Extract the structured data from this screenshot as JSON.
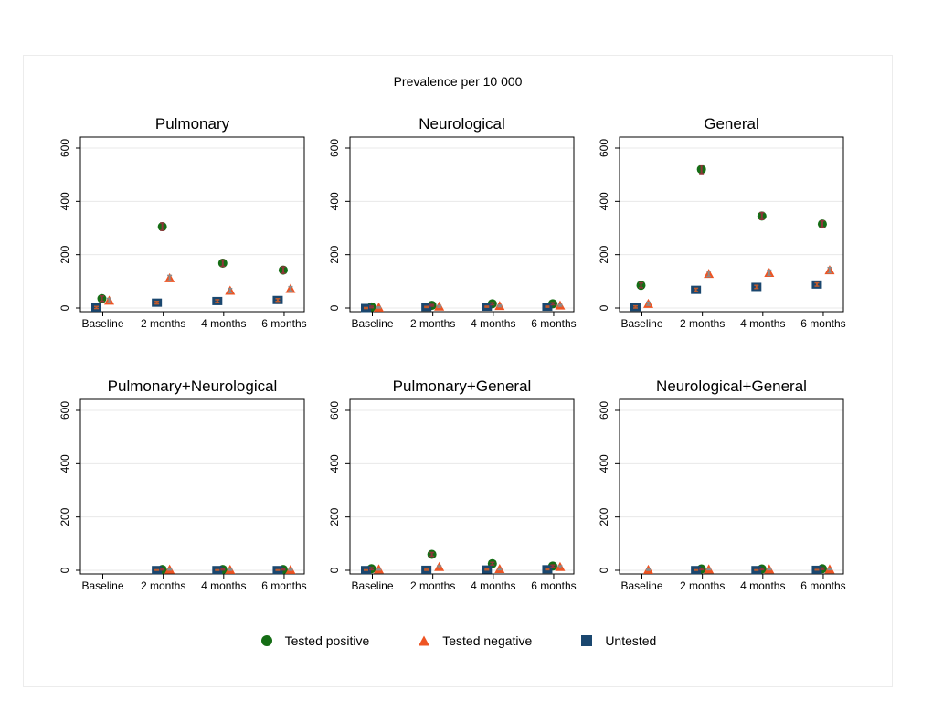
{
  "chart_data": {
    "type": "scatter",
    "title": "Prevalence per 10 000",
    "categories": [
      "Baseline",
      "2 months",
      "4 months",
      "6 months"
    ],
    "ylim": [
      0,
      600
    ],
    "yticks": [
      0,
      200,
      400,
      600
    ],
    "grid": true,
    "legend_position": "bottom",
    "series_meta": [
      {
        "name": "Tested positive",
        "marker": "circle",
        "color": "#156d15",
        "err_color": "#90353b"
      },
      {
        "name": "Tested negative",
        "marker": "triangle",
        "color": "#ee5423",
        "err_color": "#8c8c8c"
      },
      {
        "name": "Untested",
        "marker": "square",
        "color": "#1a476f",
        "err_color": "#bf5b2d"
      }
    ],
    "panels": [
      {
        "title": "Pulmonary",
        "series": [
          {
            "name": "Tested positive",
            "values": [
              35,
              305,
              168,
              142
            ],
            "err": [
              10,
              14,
              12,
              12
            ]
          },
          {
            "name": "Tested negative",
            "values": [
              28,
              112,
              65,
              72
            ],
            "err": [
              8,
              10,
              8,
              8
            ]
          },
          {
            "name": "Untested",
            "values": [
              2,
              20,
              26,
              30
            ],
            "err": [
              4,
              5,
              5,
              5
            ]
          }
        ]
      },
      {
        "title": "Neurological",
        "series": [
          {
            "name": "Tested positive",
            "values": [
              4,
              10,
              16,
              16
            ],
            "err": [
              3,
              3,
              4,
              4
            ]
          },
          {
            "name": "Tested negative",
            "values": [
              2,
              6,
              8,
              10
            ],
            "err": [
              2,
              3,
              3,
              3
            ]
          },
          {
            "name": "Untested",
            "values": [
              0,
              4,
              5,
              5
            ],
            "err": [
              2,
              2,
              2,
              2
            ]
          }
        ]
      },
      {
        "title": "General",
        "series": [
          {
            "name": "Tested positive",
            "values": [
              85,
              520,
              345,
              315
            ],
            "err": [
              9,
              16,
              13,
              12
            ]
          },
          {
            "name": "Tested negative",
            "values": [
              16,
              128,
              132,
              142
            ],
            "err": [
              6,
              10,
              10,
              10
            ]
          },
          {
            "name": "Untested",
            "values": [
              4,
              68,
              79,
              88
            ],
            "err": [
              4,
              6,
              6,
              6
            ]
          }
        ]
      },
      {
        "title": "Pulmonary+Neurological",
        "series": [
          {
            "name": "Tested positive",
            "values": [
              null,
              3,
              3,
              3
            ],
            "err": [
              null,
              2,
              2,
              2
            ]
          },
          {
            "name": "Tested negative",
            "values": [
              null,
              3,
              2,
              2
            ],
            "err": [
              null,
              2,
              2,
              2
            ]
          },
          {
            "name": "Untested",
            "values": [
              null,
              1,
              1,
              1
            ],
            "err": [
              null,
              1,
              1,
              1
            ]
          }
        ]
      },
      {
        "title": "Pulmonary+General",
        "series": [
          {
            "name": "Tested positive",
            "values": [
              6,
              60,
              25,
              16
            ],
            "err": [
              4,
              7,
              5,
              4
            ]
          },
          {
            "name": "Tested negative",
            "values": [
              4,
              13,
              5,
              13
            ],
            "err": [
              3,
              4,
              3,
              4
            ]
          },
          {
            "name": "Untested",
            "values": [
              1,
              2,
              3,
              4
            ],
            "err": [
              1,
              2,
              2,
              2
            ]
          }
        ]
      },
      {
        "title": "Neurological+General",
        "series": [
          {
            "name": "Tested positive",
            "values": [
              null,
              5,
              5,
              6
            ],
            "err": [
              null,
              3,
              3,
              3
            ]
          },
          {
            "name": "Tested negative",
            "values": [
              2,
              4,
              4,
              4
            ],
            "err": [
              2,
              2,
              2,
              2
            ]
          },
          {
            "name": "Untested",
            "values": [
              null,
              1,
              1,
              2
            ],
            "err": [
              null,
              1,
              1,
              1
            ]
          }
        ]
      }
    ]
  },
  "legend": {
    "items": [
      {
        "label": "Tested positive",
        "marker": "circle"
      },
      {
        "label": "Tested negative",
        "marker": "triangle"
      },
      {
        "label": "Untested",
        "marker": "square"
      }
    ]
  },
  "colors": {
    "grid_line": "#e8e8e8",
    "axis_line": "#000000",
    "canvas_border": "#ececec"
  }
}
